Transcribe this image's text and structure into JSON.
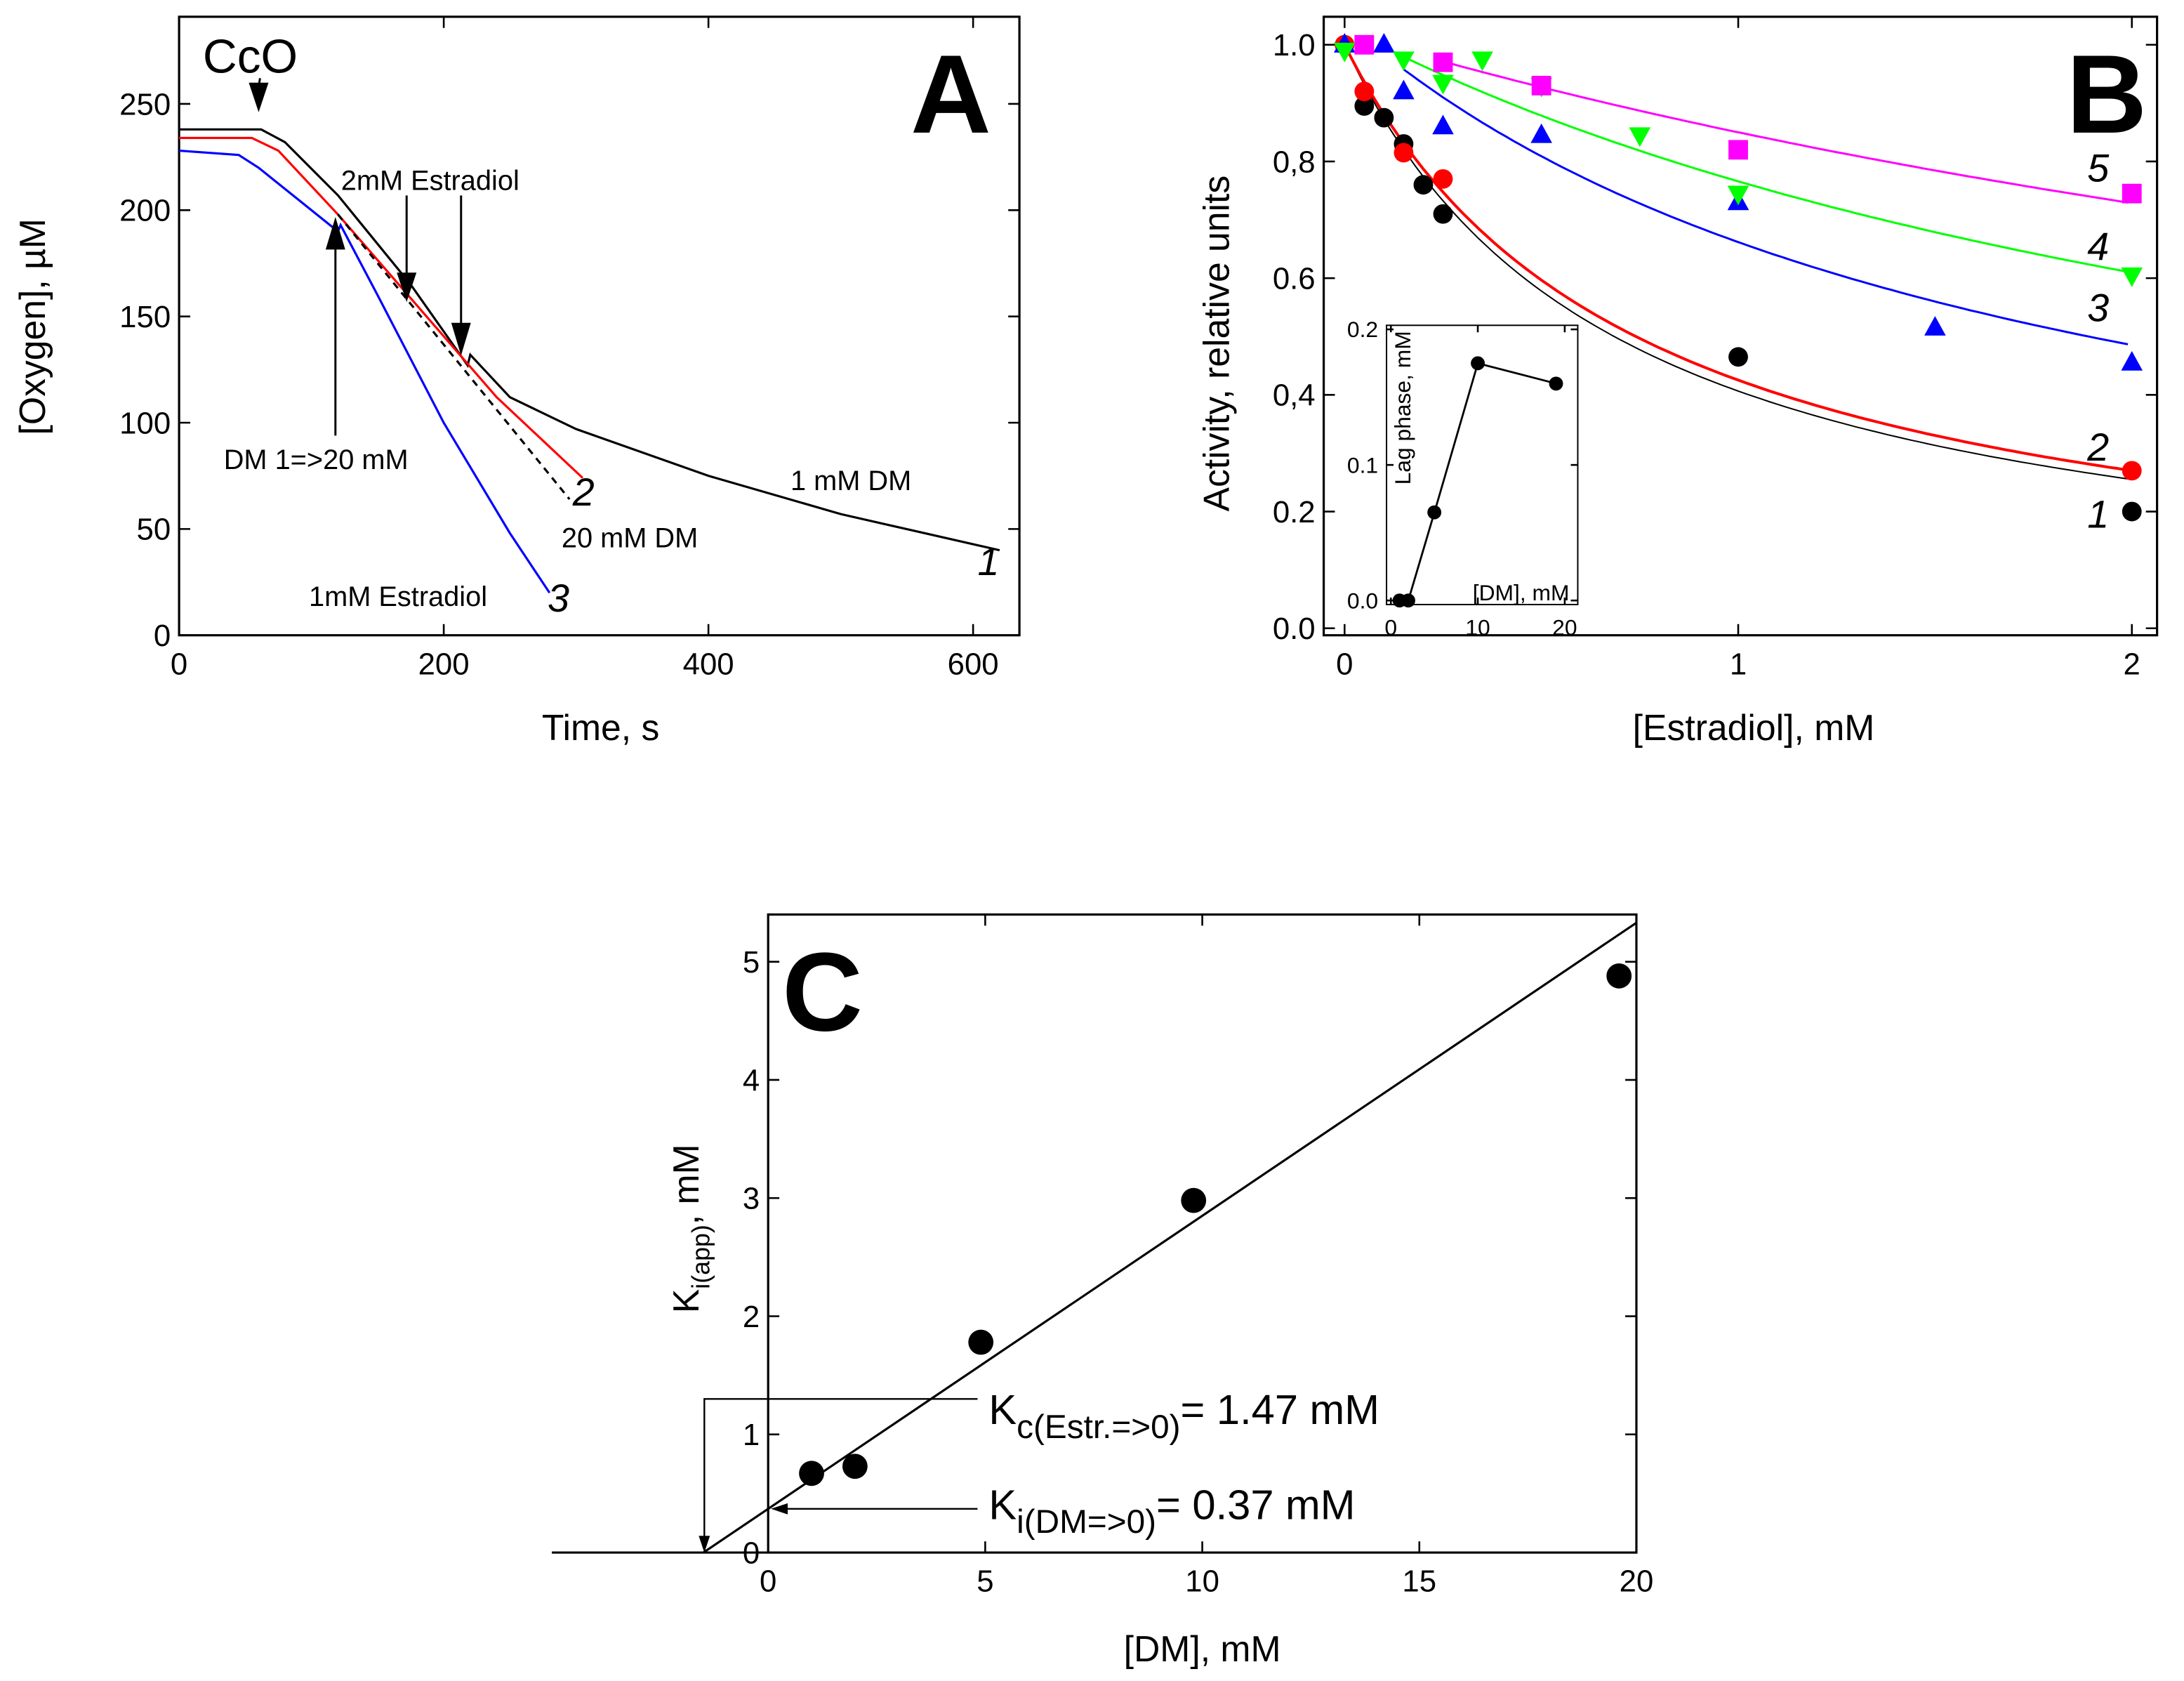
{
  "chart_data": [
    {
      "panel": "A",
      "type": "line",
      "panel_label": "A",
      "xlabel": "Time, s",
      "ylabel": "[Oxygen], µM",
      "xlim": [
        0,
        635
      ],
      "ylim": [
        0,
        291
      ],
      "xticks": [
        0,
        200,
        400,
        600
      ],
      "yticks": [
        0,
        50,
        100,
        150,
        200,
        250
      ],
      "series": [
        {
          "name": "1",
          "color": "#000000",
          "x": [
            0,
            62,
            80,
            120,
            175,
            218,
            220,
            250,
            300,
            400,
            500,
            620
          ],
          "y": [
            238,
            238,
            232,
            207,
            165,
            127,
            132,
            112,
            97,
            75,
            57,
            40
          ]
        },
        {
          "name": "2",
          "color": "#ff0000",
          "x": [
            0,
            55,
            75,
            120,
            180,
            240,
            305
          ],
          "y": [
            234,
            234,
            228,
            198,
            155,
            112,
            74
          ]
        },
        {
          "name": "20 mM DM (dashed)",
          "color": "#000000",
          "dashed": true,
          "x": [
            120,
            295
          ],
          "y": [
            198,
            64
          ]
        },
        {
          "name": "3",
          "color": "#0000ff",
          "x": [
            0,
            45,
            60,
            90,
            120,
            122,
            150,
            200,
            250,
            280
          ],
          "y": [
            228,
            226,
            220,
            205,
            190,
            193,
            160,
            100,
            48,
            20
          ]
        }
      ],
      "annotations": {
        "cco": "CcO",
        "estradiol2": "2mM Estradiol",
        "dm_switch": "DM 1=>20 mM",
        "dm1": "1 mM DM",
        "dm20": "20 mM DM",
        "estradiol1": "1mM Estradiol",
        "n1": "1",
        "n2": "2",
        "n3": "3"
      }
    },
    {
      "panel": "B",
      "type": "scatter",
      "panel_label": "B",
      "xlabel": "[Estradiol], mM",
      "ylabel": "Activity, relative units",
      "xlim": [
        -0.053,
        2.064
      ],
      "ylim": [
        -0.012,
        1.048
      ],
      "xticks": [
        "0",
        "1",
        "2"
      ],
      "xtick_values": [
        0,
        1,
        2
      ],
      "yticks": [
        "0.0",
        "0.2",
        "0,4",
        "0.6",
        "0,8",
        "1.0"
      ],
      "ytick_values": [
        0,
        0.2,
        0.4,
        0.6,
        0.8,
        1.0
      ],
      "series": [
        {
          "name": "1",
          "color": "#000000",
          "marker": "circle",
          "x": [
            0,
            0.05,
            0.1,
            0.15,
            0.2,
            0.25,
            1,
            2
          ],
          "y": [
            1,
            0.895,
            0.875,
            0.83,
            0.76,
            0.71,
            0.465,
            0.2
          ],
          "fit": {
            "A": 1.0,
            "K": 0.685,
            "from": 0,
            "width": 1
          }
        },
        {
          "name": "2",
          "color": "#ff0000",
          "marker": "circle",
          "x": [
            0,
            0.05,
            0.15,
            0.25,
            2
          ],
          "y": [
            1,
            0.92,
            0.815,
            0.77,
            0.27
          ],
          "fit": {
            "A": 1.0,
            "K": 0.74,
            "from": 0,
            "width": 2
          }
        },
        {
          "name": "3",
          "color": "#0000ff",
          "marker": "triangle-up",
          "x": [
            0,
            0.1,
            0.15,
            0.25,
            0.5,
            1,
            1.5,
            2
          ],
          "y": [
            1,
            1,
            0.92,
            0.86,
            0.845,
            0.73,
            0.515,
            0.455
          ],
          "fit": {
            "A": 1.04,
            "K": 1.75,
            "from": 0.15,
            "width": 1.5
          }
        },
        {
          "name": "4",
          "color": "#00ff00",
          "marker": "triangle-down",
          "x": [
            0,
            0.15,
            0.25,
            0.35,
            0.5,
            0.75,
            1,
            2
          ],
          "y": [
            0.99,
            0.975,
            0.935,
            0.975,
            0.93,
            0.845,
            0.745,
            0.605
          ],
          "fit": {
            "A": 1.03,
            "K": 2.9,
            "from": 0.1,
            "width": 1.5
          }
        },
        {
          "name": "5",
          "color": "#ff00ff",
          "marker": "square",
          "x": [
            0.05,
            0.25,
            0.5,
            1,
            2
          ],
          "y": [
            1,
            0.97,
            0.93,
            0.82,
            0.745
          ],
          "fit": {
            "A": 1.02,
            "K": 5.0,
            "from": 0.25,
            "width": 1.5
          }
        }
      ],
      "inset": {
        "type": "line",
        "xlabel": "[DM], mM",
        "ylabel": "Lag phase, mM",
        "xlim": [
          -0.5,
          21.5
        ],
        "ylim": [
          -0.003,
          0.203
        ],
        "xticks": [
          0,
          10,
          20
        ],
        "yticks": [
          "0.0",
          "0.1",
          "0.2"
        ],
        "ytick_values": [
          0,
          0.1,
          0.2
        ],
        "x": [
          1,
          2,
          5,
          10,
          19
        ],
        "y": [
          0,
          0,
          0.065,
          0.175,
          0.16
        ]
      }
    },
    {
      "panel": "C",
      "type": "scatter",
      "panel_label": "C",
      "xlabel": "[DM], mM",
      "ylabel_main": "K",
      "ylabel_sub": "i(app)",
      "ylabel_tail": ", mM",
      "xlim": [
        0,
        20
      ],
      "ylim": [
        0,
        5.4
      ],
      "xticks": [
        0,
        5,
        10,
        15,
        20
      ],
      "yticks": [
        0,
        1,
        2,
        3,
        4,
        5
      ],
      "x": [
        1,
        2,
        4.9,
        9.8,
        19.6
      ],
      "y": [
        0.67,
        0.73,
        1.78,
        2.98,
        4.88
      ],
      "fit": {
        "slope": 0.248,
        "intercept": 0.37,
        "from": -1.49,
        "to": 20
      },
      "annotations": {
        "kc_main": "K",
        "kc_sub": "c(Estr.=>0)",
        "kc_tail": "= 1.47 mM",
        "kc_x": -1.47,
        "ki_main": "K",
        "ki_sub": "i(DM=>0)",
        "ki_tail": "= 0.37 mM",
        "ki_y": 0.37
      }
    }
  ]
}
